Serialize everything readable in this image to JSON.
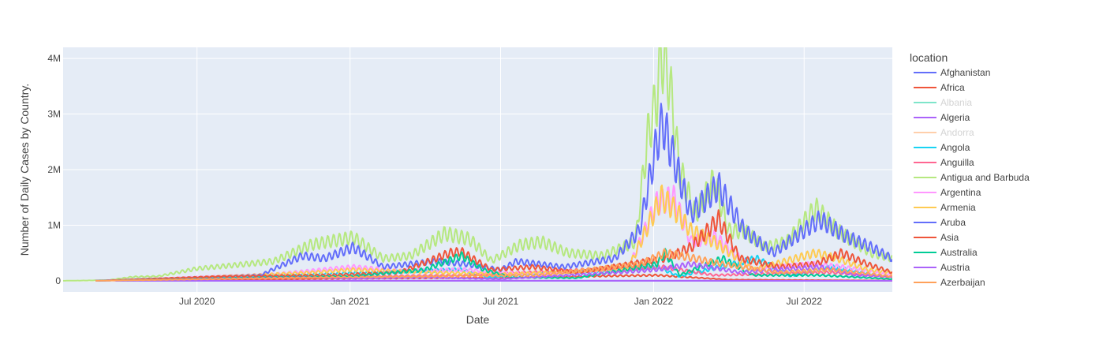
{
  "chart_data": {
    "type": "line",
    "xlabel": "Date",
    "ylabel": "Number of Daily Cases by Country.",
    "legend_title": "location",
    "legend_placement": "right",
    "grid": true,
    "x_range": [
      "2020-01-22",
      "2022-10-15"
    ],
    "y_range": [
      -200000,
      4200000
    ],
    "x_ticks": [
      {
        "date": "2020-07-01",
        "label": "Jul 2020"
      },
      {
        "date": "2021-01-01",
        "label": "Jan 2021"
      },
      {
        "date": "2021-07-01",
        "label": "Jul 2021"
      },
      {
        "date": "2022-01-01",
        "label": "Jan 2022"
      },
      {
        "date": "2022-07-01",
        "label": "Jul 2022"
      }
    ],
    "y_ticks": [
      {
        "value": 0,
        "label": "0"
      },
      {
        "value": 1000000,
        "label": "1M"
      },
      {
        "value": 2000000,
        "label": "2M"
      },
      {
        "value": 3000000,
        "label": "3M"
      },
      {
        "value": 4000000,
        "label": "4M"
      }
    ],
    "series": [
      {
        "name": "Afghanistan",
        "color": "#636efa",
        "hidden": false,
        "points": [
          [
            "2020-03-25",
            0
          ],
          [
            "2022-10-15",
            0
          ]
        ]
      },
      {
        "name": "Africa",
        "color": "#EF553B",
        "hidden": false,
        "points": [
          [
            "2020-03-01",
            5000
          ],
          [
            "2020-07-20",
            20000
          ],
          [
            "2021-01-05",
            40000
          ],
          [
            "2021-07-10",
            60000
          ],
          [
            "2022-01-05",
            100000
          ],
          [
            "2022-04-01",
            20000
          ],
          [
            "2022-10-15",
            3000
          ]
        ]
      },
      {
        "name": "Albania",
        "color": "#00cc96",
        "hidden": true,
        "points": []
      },
      {
        "name": "Algeria",
        "color": "#ab63fa",
        "hidden": false,
        "points": [
          [
            "2020-03-25",
            0
          ],
          [
            "2022-10-15",
            500
          ]
        ]
      },
      {
        "name": "Andorra",
        "color": "#FFA15A",
        "hidden": true,
        "points": []
      },
      {
        "name": "Angola",
        "color": "#19d3f3",
        "hidden": false,
        "points": [
          [
            "2020-03-01",
            5000
          ],
          [
            "2021-05-15",
            200000
          ],
          [
            "2021-06-15",
            60000
          ],
          [
            "2022-01-05",
            250000
          ],
          [
            "2022-02-01",
            80000
          ],
          [
            "2022-05-05",
            400000
          ],
          [
            "2022-06-15",
            80000
          ],
          [
            "2022-08-01",
            250000
          ],
          [
            "2022-10-15",
            60000
          ]
        ]
      },
      {
        "name": "Anguilla",
        "color": "#FF6692",
        "hidden": false,
        "points": [
          [
            "2020-03-01",
            3000
          ],
          [
            "2021-01-05",
            80000
          ],
          [
            "2021-05-15",
            100000
          ],
          [
            "2022-01-10",
            250000
          ],
          [
            "2022-03-15",
            100000
          ],
          [
            "2022-08-01",
            150000
          ],
          [
            "2022-10-15",
            60000
          ]
        ]
      },
      {
        "name": "Antigua and Barbuda",
        "color": "#B6E880",
        "hidden": false,
        "points": [
          [
            "2020-01-22",
            0
          ],
          [
            "2020-03-15",
            10000
          ],
          [
            "2020-04-15",
            70000
          ],
          [
            "2020-05-15",
            80000
          ],
          [
            "2020-07-01",
            220000
          ],
          [
            "2020-08-15",
            280000
          ],
          [
            "2020-10-01",
            350000
          ],
          [
            "2020-11-15",
            650000
          ],
          [
            "2021-01-05",
            780000
          ],
          [
            "2021-02-10",
            400000
          ],
          [
            "2021-03-15",
            450000
          ],
          [
            "2021-04-25",
            850000
          ],
          [
            "2021-05-25",
            750000
          ],
          [
            "2021-06-20",
            360000
          ],
          [
            "2021-07-25",
            650000
          ],
          [
            "2021-08-20",
            700000
          ],
          [
            "2021-09-20",
            500000
          ],
          [
            "2021-11-01",
            450000
          ],
          [
            "2021-12-10",
            700000
          ],
          [
            "2021-12-25",
            2600000
          ],
          [
            "2022-01-05",
            3300000
          ],
          [
            "2022-01-10",
            4100000
          ],
          [
            "2022-01-20",
            3600000
          ],
          [
            "2022-02-01",
            2000000
          ],
          [
            "2022-02-20",
            1200000
          ],
          [
            "2022-03-15",
            1800000
          ],
          [
            "2022-04-01",
            900000
          ],
          [
            "2022-04-20",
            900000
          ],
          [
            "2022-05-15",
            600000
          ],
          [
            "2022-06-10",
            700000
          ],
          [
            "2022-07-15",
            1300000
          ],
          [
            "2022-08-10",
            900000
          ],
          [
            "2022-08-30",
            700000
          ],
          [
            "2022-09-20",
            500000
          ],
          [
            "2022-10-15",
            400000
          ]
        ]
      },
      {
        "name": "Argentina",
        "color": "#FF97FF",
        "hidden": false,
        "points": [
          [
            "2020-03-01",
            0
          ],
          [
            "2020-10-01",
            120000
          ],
          [
            "2021-01-05",
            250000
          ],
          [
            "2021-03-01",
            180000
          ],
          [
            "2021-05-20",
            200000
          ],
          [
            "2021-07-01",
            150000
          ],
          [
            "2021-09-01",
            120000
          ],
          [
            "2021-12-01",
            200000
          ],
          [
            "2022-01-05",
            1400000
          ],
          [
            "2022-01-25",
            1500000
          ],
          [
            "2022-02-15",
            700000
          ],
          [
            "2022-03-15",
            800000
          ],
          [
            "2022-05-01",
            200000
          ],
          [
            "2022-07-10",
            300000
          ],
          [
            "2022-08-15",
            250000
          ],
          [
            "2022-10-15",
            100000
          ]
        ]
      },
      {
        "name": "Armenia",
        "color": "#FECB52",
        "hidden": false,
        "points": [
          [
            "2020-03-01",
            0
          ],
          [
            "2020-07-01",
            60000
          ],
          [
            "2020-11-15",
            150000
          ],
          [
            "2021-01-05",
            200000
          ],
          [
            "2021-04-15",
            150000
          ],
          [
            "2021-07-01",
            120000
          ],
          [
            "2021-09-01",
            150000
          ],
          [
            "2021-12-01",
            200000
          ],
          [
            "2022-01-10",
            1500000
          ],
          [
            "2022-01-25",
            1300000
          ],
          [
            "2022-02-15",
            900000
          ],
          [
            "2022-03-15",
            700000
          ],
          [
            "2022-05-01",
            200000
          ],
          [
            "2022-07-15",
            500000
          ],
          [
            "2022-08-10",
            400000
          ],
          [
            "2022-09-15",
            200000
          ],
          [
            "2022-10-15",
            150000
          ]
        ]
      },
      {
        "name": "Aruba",
        "color": "#636efa",
        "hidden": false,
        "points": [
          [
            "2020-03-01",
            0
          ],
          [
            "2020-07-01",
            60000
          ],
          [
            "2020-09-15",
            100000
          ],
          [
            "2020-11-05",
            450000
          ],
          [
            "2020-12-01",
            400000
          ],
          [
            "2021-01-05",
            600000
          ],
          [
            "2021-02-10",
            250000
          ],
          [
            "2021-04-15",
            350000
          ],
          [
            "2021-05-20",
            300000
          ],
          [
            "2021-07-01",
            200000
          ],
          [
            "2021-07-20",
            350000
          ],
          [
            "2021-09-15",
            250000
          ],
          [
            "2021-11-15",
            400000
          ],
          [
            "2021-12-15",
            900000
          ],
          [
            "2022-01-05",
            2500000
          ],
          [
            "2022-01-12",
            2850000
          ],
          [
            "2022-01-25",
            2200000
          ],
          [
            "2022-02-15",
            1200000
          ],
          [
            "2022-03-20",
            1700000
          ],
          [
            "2022-04-20",
            900000
          ],
          [
            "2022-05-25",
            500000
          ],
          [
            "2022-07-01",
            900000
          ],
          [
            "2022-07-20",
            1100000
          ],
          [
            "2022-08-20",
            800000
          ],
          [
            "2022-09-20",
            600000
          ],
          [
            "2022-10-15",
            400000
          ]
        ]
      },
      {
        "name": "Asia",
        "color": "#EF553B",
        "hidden": false,
        "points": [
          [
            "2020-03-01",
            0
          ],
          [
            "2020-08-01",
            80000
          ],
          [
            "2020-12-01",
            100000
          ],
          [
            "2021-03-01",
            150000
          ],
          [
            "2021-05-01",
            500000
          ],
          [
            "2021-05-15",
            520000
          ],
          [
            "2021-06-20",
            200000
          ],
          [
            "2021-08-10",
            250000
          ],
          [
            "2021-10-01",
            150000
          ],
          [
            "2022-01-15",
            400000
          ],
          [
            "2022-02-15",
            600000
          ],
          [
            "2022-03-20",
            1100000
          ],
          [
            "2022-04-15",
            400000
          ],
          [
            "2022-06-01",
            250000
          ],
          [
            "2022-07-15",
            300000
          ],
          [
            "2022-08-15",
            500000
          ],
          [
            "2022-09-15",
            300000
          ],
          [
            "2022-10-15",
            150000
          ]
        ]
      },
      {
        "name": "Australia",
        "color": "#00cc96",
        "hidden": false,
        "points": [
          [
            "2020-03-01",
            0
          ],
          [
            "2020-10-01",
            60000
          ],
          [
            "2021-01-05",
            80000
          ],
          [
            "2021-04-01",
            200000
          ],
          [
            "2021-05-15",
            450000
          ],
          [
            "2021-06-10",
            200000
          ],
          [
            "2021-07-15",
            60000
          ],
          [
            "2021-10-01",
            50000
          ],
          [
            "2022-01-05",
            300000
          ],
          [
            "2022-01-15",
            500000
          ],
          [
            "2022-02-01",
            100000
          ],
          [
            "2022-03-25",
            400000
          ],
          [
            "2022-05-01",
            100000
          ],
          [
            "2022-07-20",
            100000
          ],
          [
            "2022-10-15",
            30000
          ]
        ]
      },
      {
        "name": "Austria",
        "color": "#ab63fa",
        "hidden": false,
        "points": [
          [
            "2020-03-01",
            0
          ],
          [
            "2020-11-10",
            60000
          ],
          [
            "2021-01-05",
            40000
          ],
          [
            "2021-04-01",
            60000
          ],
          [
            "2021-07-01",
            30000
          ],
          [
            "2021-11-20",
            150000
          ],
          [
            "2022-01-05",
            200000
          ],
          [
            "2022-02-15",
            300000
          ],
          [
            "2022-04-15",
            150000
          ],
          [
            "2022-07-20",
            250000
          ],
          [
            "2022-09-01",
            100000
          ],
          [
            "2022-10-15",
            80000
          ]
        ]
      },
      {
        "name": "Azerbaijan",
        "color": "#FFA15A",
        "hidden": false,
        "points": [
          [
            "2020-03-01",
            0
          ],
          [
            "2020-12-01",
            60000
          ],
          [
            "2021-04-15",
            80000
          ],
          [
            "2021-08-15",
            100000
          ],
          [
            "2021-12-15",
            300000
          ],
          [
            "2022-01-15",
            500000
          ],
          [
            "2022-02-20",
            400000
          ],
          [
            "2022-03-25",
            300000
          ],
          [
            "2022-06-01",
            150000
          ],
          [
            "2022-08-01",
            200000
          ],
          [
            "2022-10-15",
            80000
          ]
        ]
      }
    ]
  }
}
